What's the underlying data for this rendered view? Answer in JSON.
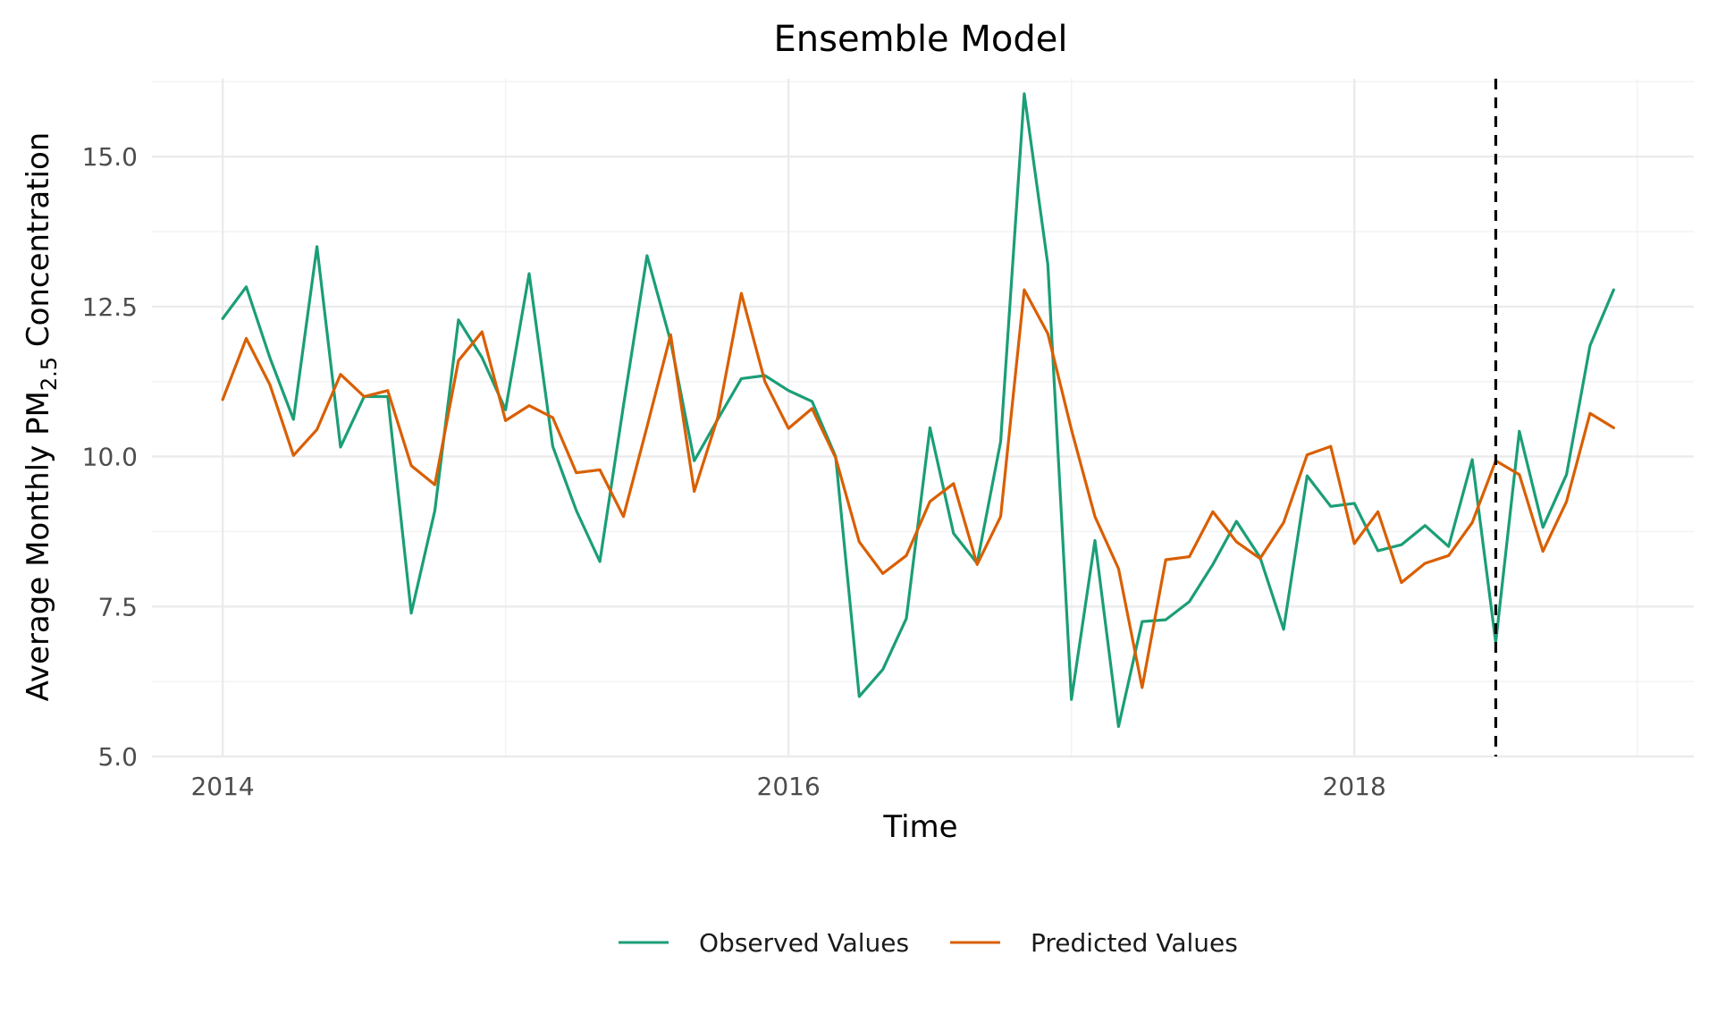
{
  "chart_data": {
    "type": "line",
    "title": "Ensemble Model",
    "xlabel": "Time",
    "ylabel_parts": {
      "before": "Average Monthly PM",
      "sub": "2.5",
      "after": " Concentration"
    },
    "xlim": [
      2013.75,
      2019.2
    ],
    "ylim": [
      5.0,
      16.3
    ],
    "yticks": [
      5.0,
      7.5,
      10.0,
      12.5,
      15.0
    ],
    "ytick_labels": [
      "5.0",
      "7.5",
      "10.0",
      "12.5",
      "15.0"
    ],
    "xticks": [
      2014,
      2016,
      2018
    ],
    "xtick_labels": [
      "2014",
      "2016",
      "2018"
    ],
    "x_start_year": 2014,
    "months_per_year": 12,
    "cutoff_x": 2018.5,
    "grid": true,
    "legend_position": "bottom",
    "series": [
      {
        "name": "Observed Values",
        "color": "#1b9e77",
        "values": [
          12.3,
          12.83,
          11.65,
          10.62,
          13.5,
          10.16,
          11.0,
          11.0,
          7.39,
          9.1,
          12.28,
          11.65,
          10.78,
          13.05,
          10.17,
          9.1,
          8.25,
          10.85,
          13.35,
          11.92,
          9.93,
          10.62,
          11.3,
          11.35,
          11.1,
          10.92,
          10.0,
          6.0,
          6.45,
          7.3,
          10.48,
          8.72,
          8.22,
          10.25,
          16.05,
          13.2,
          5.95,
          8.6,
          5.5,
          7.25,
          7.28,
          7.58,
          8.2,
          8.92,
          8.32,
          7.12,
          9.68,
          9.17,
          9.22,
          8.43,
          8.53,
          8.85,
          8.5,
          9.95,
          6.9,
          10.42,
          8.82,
          9.7,
          11.85,
          12.78
        ]
      },
      {
        "name": "Predicted Values",
        "color": "#d95f02",
        "values": [
          10.95,
          11.97,
          11.2,
          10.02,
          10.45,
          11.37,
          11.0,
          11.1,
          9.85,
          9.53,
          11.6,
          12.08,
          10.6,
          10.85,
          10.65,
          9.73,
          9.78,
          9.0,
          10.5,
          12.03,
          9.42,
          10.65,
          12.72,
          11.25,
          10.47,
          10.8,
          9.98,
          8.58,
          8.05,
          8.35,
          9.25,
          9.55,
          8.2,
          9.0,
          12.78,
          12.05,
          10.45,
          9.0,
          8.13,
          6.15,
          8.28,
          8.33,
          9.08,
          8.58,
          8.3,
          8.9,
          10.03,
          10.17,
          8.55,
          9.08,
          7.9,
          8.22,
          8.35,
          8.9,
          9.93,
          9.7,
          8.42,
          9.25,
          10.72,
          10.48
        ]
      }
    ]
  }
}
